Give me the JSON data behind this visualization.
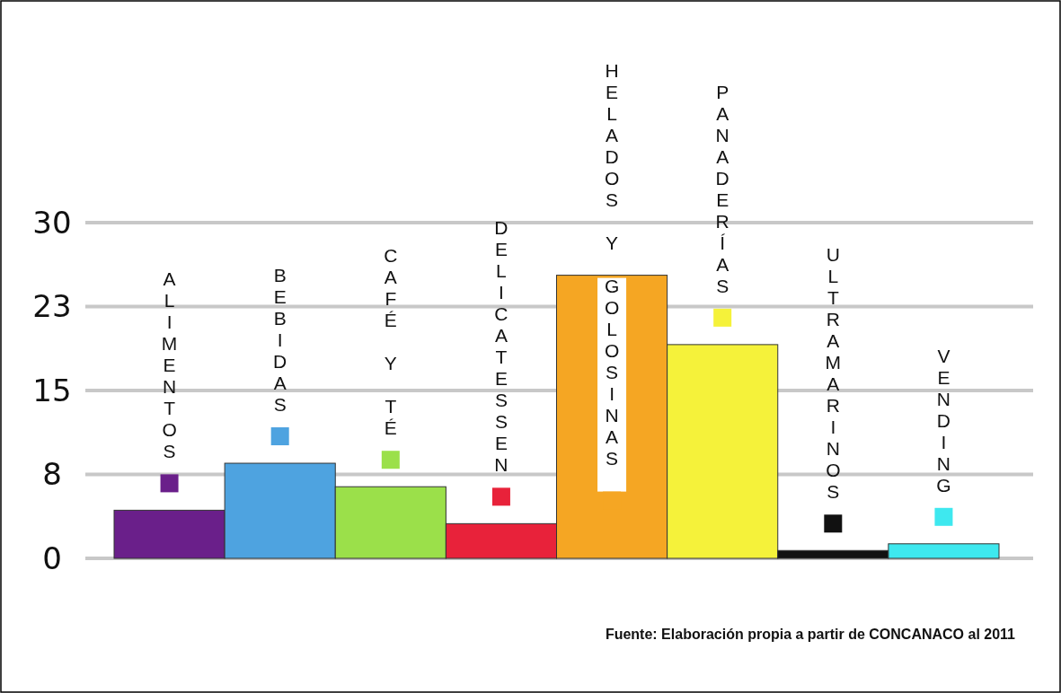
{
  "chart_data": {
    "type": "bar",
    "categories": [
      "ALIMENTOS",
      "BEBIDAS",
      "CAFÉ Y TÉ",
      "DELICATESSEN",
      "HELADOS Y GOLOSINAS",
      "PANADERÍAS",
      "ULTRAMARINOS",
      "VENDING"
    ],
    "values": [
      4.3,
      8.5,
      6.4,
      3.1,
      25.3,
      19.1,
      0.7,
      1.3
    ],
    "colors": [
      "#6a1f8a",
      "#4ea3e0",
      "#9be04a",
      "#e8223a",
      "#f5a623",
      "#f5f23a",
      "#111111",
      "#3ee8ef"
    ],
    "ylim": [
      0,
      30
    ],
    "yticks": [
      0,
      {
        "value": 7.5,
        "label": "8"
      },
      15,
      {
        "value": 22.5,
        "label": "23"
      },
      30
    ],
    "grid": "y",
    "annotations": [
      "Fuente: Elaboración propia a partir de CONCANACO al 2011"
    ]
  }
}
